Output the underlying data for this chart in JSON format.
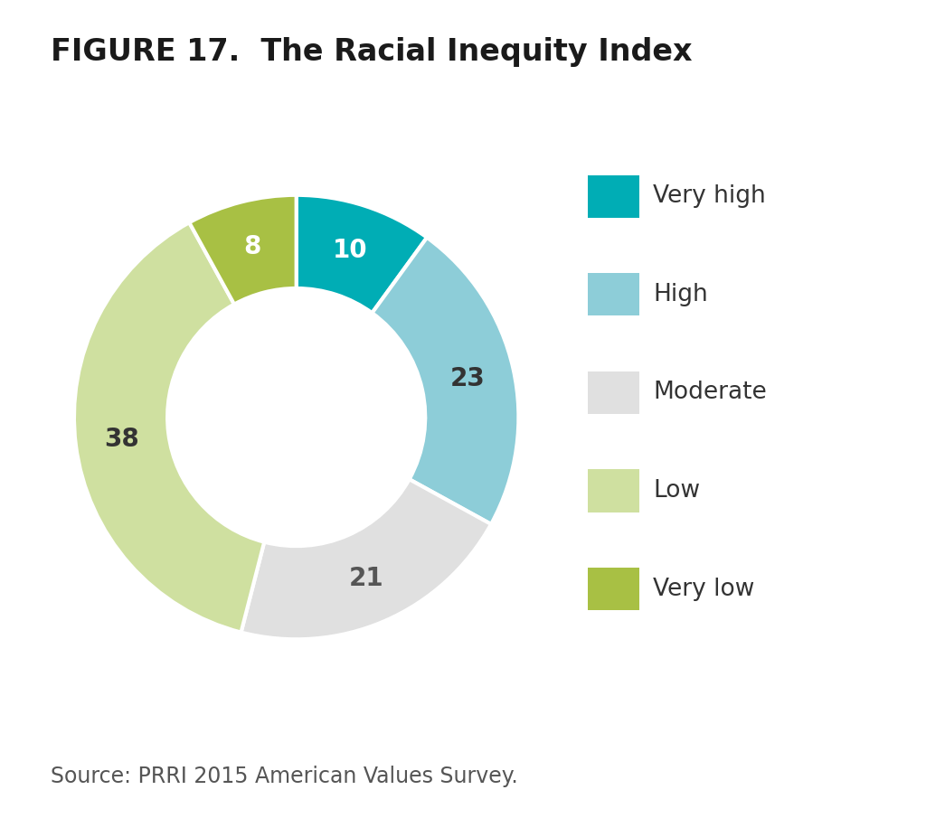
{
  "title": "FIGURE 17.  The Racial Inequity Index",
  "source": "Source: PRRI 2015 American Values Survey.",
  "slices": [
    10,
    23,
    21,
    38,
    8
  ],
  "labels": [
    "10",
    "23",
    "21",
    "38",
    "8"
  ],
  "legend_labels": [
    "Very high",
    "High",
    "Moderate",
    "Low",
    "Very low"
  ],
  "colors": [
    "#00adb5",
    "#8dcdd8",
    "#e0e0e0",
    "#cfe0a0",
    "#a8c044"
  ],
  "label_colors": [
    "#ffffff",
    "#333333",
    "#555555",
    "#333333",
    "#ffffff"
  ],
  "background_color": "#ffffff",
  "title_fontsize": 24,
  "label_fontsize": 20,
  "legend_fontsize": 19,
  "source_fontsize": 17,
  "donut_width": 0.42
}
